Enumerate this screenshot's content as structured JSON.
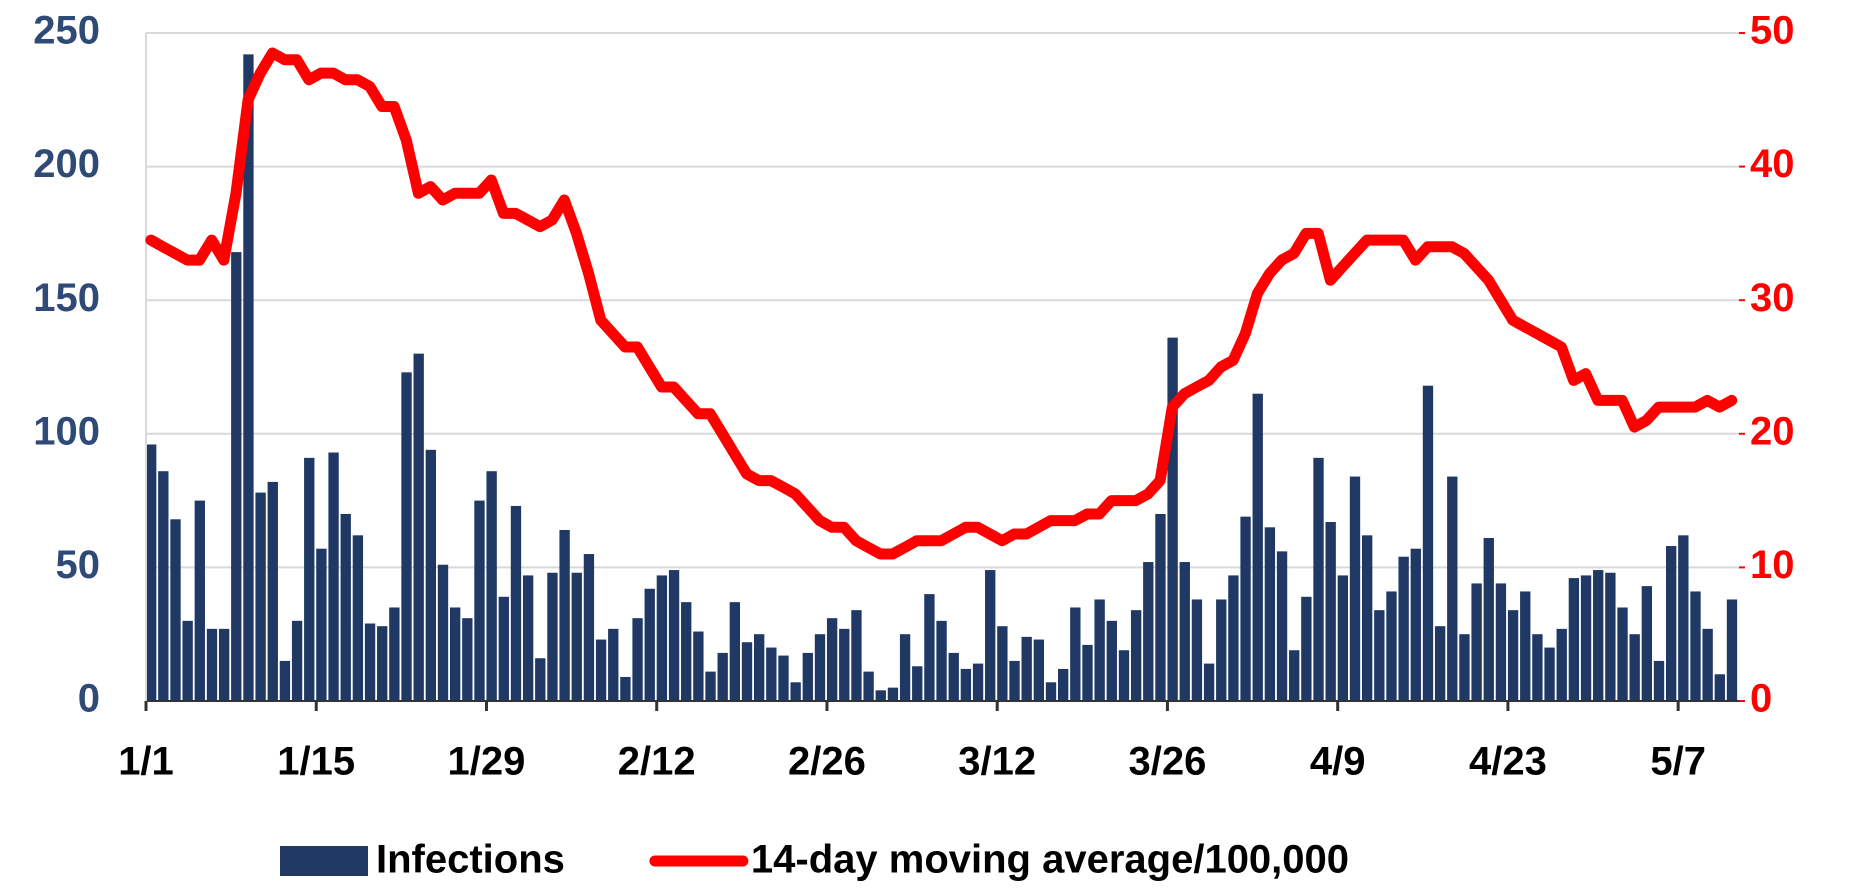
{
  "chart_data": {
    "type": "bar",
    "categories": [
      "1/1",
      null,
      null,
      null,
      null,
      null,
      null,
      null,
      null,
      null,
      null,
      null,
      null,
      null,
      "1/15",
      null,
      null,
      null,
      null,
      null,
      null,
      null,
      null,
      null,
      null,
      null,
      null,
      null,
      "1/29",
      null,
      null,
      null,
      null,
      null,
      null,
      null,
      null,
      null,
      null,
      null,
      null,
      null,
      "2/12",
      null,
      null,
      null,
      null,
      null,
      null,
      null,
      null,
      null,
      null,
      null,
      null,
      null,
      "2/26",
      null,
      null,
      null,
      null,
      null,
      null,
      null,
      null,
      null,
      null,
      null,
      null,
      null,
      "3/12",
      null,
      null,
      null,
      null,
      null,
      null,
      null,
      null,
      null,
      null,
      null,
      null,
      null,
      "3/26",
      null,
      null,
      null,
      null,
      null,
      null,
      null,
      null,
      null,
      null,
      null,
      null,
      null,
      "4/9",
      null,
      null,
      null,
      null,
      null,
      null,
      null,
      null,
      null,
      null,
      null,
      null,
      null,
      "4/23",
      null,
      null,
      null,
      null,
      null,
      null,
      null,
      null,
      null,
      null,
      null,
      null,
      null,
      "5/7",
      null,
      null,
      null,
      null
    ],
    "series": [
      {
        "name": "Infections",
        "type": "bar",
        "color": "#1f3864",
        "values": [
          96,
          86,
          68,
          30,
          75,
          27,
          27,
          168,
          242,
          78,
          82,
          15,
          30,
          91,
          57,
          93,
          70,
          62,
          29,
          28,
          35,
          123,
          130,
          94,
          51,
          35,
          31,
          75,
          86,
          39,
          73,
          47,
          16,
          48,
          64,
          48,
          55,
          23,
          27,
          9,
          31,
          42,
          47,
          49,
          37,
          26,
          11,
          18,
          37,
          22,
          25,
          20,
          17,
          7,
          18,
          25,
          31,
          27,
          34,
          11,
          4,
          5,
          25,
          13,
          40,
          30,
          18,
          12,
          14,
          49,
          28,
          15,
          24,
          23,
          7,
          12,
          35,
          21,
          38,
          30,
          19,
          34,
          52,
          70,
          136,
          52,
          38,
          14,
          38,
          47,
          69,
          115,
          65,
          56,
          19,
          39,
          91,
          67,
          47,
          84,
          62,
          34,
          41,
          54,
          57,
          118,
          28,
          84,
          25,
          44,
          61,
          44,
          34,
          41,
          25,
          20,
          27,
          46,
          47,
          49,
          48,
          35,
          25,
          43,
          15,
          58,
          62,
          41,
          27,
          10,
          38
        ]
      },
      {
        "name": "14-day moving average/100,000",
        "type": "line",
        "axis": "y2",
        "color": "#ff0000",
        "values": [
          34.5,
          34,
          33.5,
          33,
          33,
          34.5,
          33,
          38,
          45,
          47,
          48.5,
          48,
          48,
          46.5,
          47,
          47,
          46.5,
          46.5,
          46,
          44.5,
          44.5,
          42,
          38,
          38.5,
          37.5,
          38,
          38,
          38,
          39,
          36.5,
          36.5,
          36,
          35.5,
          36,
          37.5,
          35,
          32,
          28.5,
          27.5,
          26.5,
          26.5,
          25,
          23.5,
          23.5,
          22.5,
          21.5,
          21.5,
          20,
          18.5,
          17,
          16.5,
          16.5,
          16,
          15.5,
          14.5,
          13.5,
          13,
          13,
          12,
          11.5,
          11,
          11,
          11.5,
          12,
          12,
          12,
          12.5,
          13,
          13,
          12.5,
          12,
          12.5,
          12.5,
          13,
          13.5,
          13.5,
          13.5,
          14,
          14,
          15,
          15,
          15,
          15.5,
          16.5,
          22,
          23,
          23.5,
          24,
          25,
          25.5,
          27.5,
          30.5,
          32,
          33,
          33.5,
          35,
          35,
          31.5,
          32.5,
          33.5,
          34.5,
          34.5,
          34.5,
          34.5,
          33,
          34,
          34,
          34,
          33.5,
          32.5,
          31.5,
          30,
          28.5,
          28,
          27.5,
          27,
          26.5,
          24,
          24.5,
          22.5,
          22.5,
          22.5,
          20.5,
          21,
          22,
          22,
          22,
          22,
          22.5,
          22,
          22.5
        ]
      }
    ],
    "ylim": [
      0,
      250
    ],
    "yticks": [
      0,
      50,
      100,
      150,
      200,
      250
    ],
    "y2lim": [
      0,
      50
    ],
    "y2ticks": [
      0,
      10,
      20,
      30,
      40,
      50
    ],
    "grid": true,
    "legend": "bottom"
  }
}
